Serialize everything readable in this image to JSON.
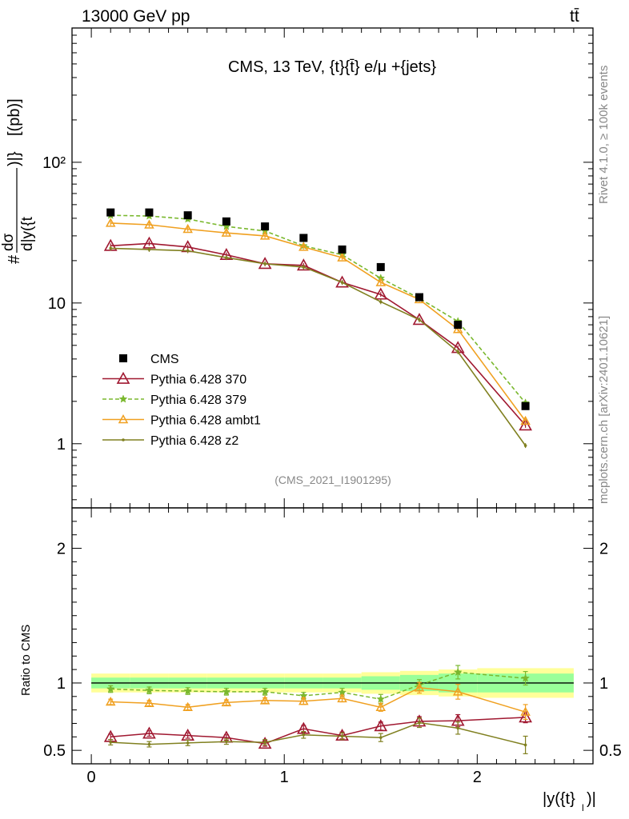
{
  "header": {
    "left_label": "13000 GeV pp",
    "right_label": "tt̄"
  },
  "side_labels": {
    "rivet": "Rivet 4.1.0, ≥ 100k events",
    "source": "mcplots.cern.ch [arXiv:2401.10621]"
  },
  "chart_data": {
    "type": "line",
    "title": "CMS, 13 TeV, {t}{t̄} e/μ +{jets}",
    "analysis_id": "(CMS_2021_I1901295)",
    "ylabel": "#dσ/d|y({t}_l)|} [{pb}]",
    "ylabel_parts": {
      "prefix": "#",
      "num": "dσ",
      "den": "d|y({t",
      "den_sub": "l",
      "den_end": ")|}",
      "suffix": " [(pb)]"
    },
    "xlabel": "|y({t}_l)|",
    "xlabel_parts": {
      "main": "|y({t}",
      "sub": "l",
      "end": ")|"
    },
    "ratio_ylabel": "Ratio to CMS",
    "xlim": [
      -0.1,
      2.6
    ],
    "ylim": [
      0.35,
      900
    ],
    "yscale": "log",
    "ratio_ylim": [
      0.4,
      2.3
    ],
    "x_ticks": [
      "0",
      "1",
      "2"
    ],
    "y_ticks": [
      "1",
      "10",
      "10²"
    ],
    "ratio_ticks": [
      "0.5",
      "1",
      "2"
    ],
    "x": [
      0.1,
      0.3,
      0.5,
      0.7,
      0.9,
      1.1,
      1.3,
      1.5,
      1.7,
      1.9,
      2.25
    ],
    "x_edges": [
      0.0,
      0.2,
      0.4,
      0.6,
      0.8,
      1.0,
      1.2,
      1.4,
      1.6,
      1.8,
      2.0,
      2.5
    ],
    "data": {
      "name": "CMS",
      "values": [
        44,
        44,
        42,
        38,
        35,
        29,
        24,
        18,
        11,
        7,
        1.85
      ],
      "stat_err_rel": [
        0.04,
        0.04,
        0.04,
        0.04,
        0.04,
        0.04,
        0.04,
        0.05,
        0.06,
        0.07,
        0.07
      ],
      "total_err_rel": [
        0.07,
        0.07,
        0.07,
        0.07,
        0.07,
        0.07,
        0.07,
        0.08,
        0.09,
        0.1,
        0.11
      ]
    },
    "series": [
      {
        "name": "Pythia 6.428 370",
        "color": "#a01830",
        "marker": "open-triangle",
        "dashed": false,
        "values": [
          25.5,
          26.5,
          25.0,
          22.0,
          19.0,
          18.5,
          14.0,
          11.5,
          7.6,
          4.8,
          1.35
        ],
        "ratio": [
          0.6,
          0.625,
          0.61,
          0.595,
          0.55,
          0.66,
          0.61,
          0.68,
          0.715,
          0.72,
          0.745
        ],
        "ratio_err": [
          0.02,
          0.02,
          0.02,
          0.02,
          0.02,
          0.025,
          0.025,
          0.03,
          0.035,
          0.045,
          0.04
        ]
      },
      {
        "name": "Pythia 6.428 379",
        "color": "#7ab82e",
        "marker": "star",
        "dashed": true,
        "values": [
          42,
          41.5,
          39.5,
          35.0,
          32.5,
          25.5,
          22.0,
          15.0,
          10.8,
          7.4,
          1.95
        ],
        "ratio": [
          0.955,
          0.945,
          0.94,
          0.935,
          0.935,
          0.905,
          0.93,
          0.88,
          0.985,
          1.08,
          1.035
        ],
        "ratio_err": [
          0.025,
          0.025,
          0.025,
          0.025,
          0.025,
          0.025,
          0.03,
          0.035,
          0.04,
          0.05,
          0.05
        ]
      },
      {
        "name": "Pythia 6.428 ambt1",
        "color": "#f0a020",
        "marker": "open-triangle-small",
        "dashed": false,
        "values": [
          37,
          36,
          33.5,
          31.5,
          30.0,
          25.0,
          21.0,
          14.0,
          10.6,
          6.5,
          1.45
        ],
        "ratio": [
          0.86,
          0.85,
          0.82,
          0.855,
          0.87,
          0.865,
          0.885,
          0.82,
          0.965,
          0.935,
          0.785
        ],
        "ratio_err": [
          0.02,
          0.02,
          0.02,
          0.02,
          0.02,
          0.025,
          0.025,
          0.03,
          0.04,
          0.055,
          0.055
        ]
      },
      {
        "name": "Pythia 6.428 z2",
        "color": "#808020",
        "marker": "dot",
        "dashed": false,
        "values": [
          24.5,
          24.0,
          23.5,
          21.0,
          19.0,
          18.0,
          14.0,
          10.2,
          7.6,
          4.5,
          0.97
        ],
        "ratio": [
          0.56,
          0.545,
          0.555,
          0.565,
          0.56,
          0.615,
          0.605,
          0.595,
          0.705,
          0.665,
          0.54
        ],
        "ratio_err": [
          0.02,
          0.02,
          0.02,
          0.02,
          0.02,
          0.025,
          0.025,
          0.03,
          0.035,
          0.045,
          0.065
        ]
      }
    ],
    "legend": [
      "CMS",
      "Pythia 6.428 370",
      "Pythia 6.428 379",
      "Pythia 6.428 ambt1",
      "Pythia 6.428 z2"
    ],
    "legend_position": "lower-left",
    "colors": {
      "data": "#000000",
      "band_total": "#ffff99",
      "band_stat": "#99ff99"
    }
  }
}
